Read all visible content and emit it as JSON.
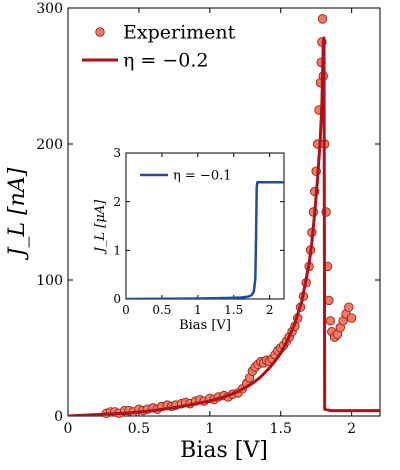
{
  "chart_data": [
    {
      "type": "scatter",
      "title": "",
      "xlabel": "Bias [V]",
      "ylabel": "J_L [nA]",
      "xlim": [
        0,
        2.2
      ],
      "ylim": [
        0,
        300
      ],
      "x_ticks": [
        "0",
        "0.5",
        "1",
        "1.5",
        "2"
      ],
      "y_ticks": [
        "0",
        "100",
        "200",
        "300"
      ],
      "x_tick_values": [
        0,
        0.5,
        1,
        1.5,
        2
      ],
      "y_tick_values": [
        0,
        100,
        200,
        300
      ],
      "grid": false,
      "legend_position": "top-left",
      "series": [
        {
          "name": "Experiment",
          "kind": "markers",
          "color": "#f07a63",
          "edge_color": "#8b1a12",
          "x": [
            0.27,
            0.3,
            0.33,
            0.36,
            0.4,
            0.43,
            0.46,
            0.5,
            0.53,
            0.56,
            0.6,
            0.63,
            0.66,
            0.7,
            0.73,
            0.76,
            0.8,
            0.83,
            0.86,
            0.9,
            0.93,
            0.96,
            1.0,
            1.03,
            1.06,
            1.1,
            1.13,
            1.16,
            1.2,
            1.23,
            1.26,
            1.28,
            1.3,
            1.32,
            1.34,
            1.36,
            1.38,
            1.4,
            1.42,
            1.44,
            1.46,
            1.48,
            1.5,
            1.52,
            1.54,
            1.56,
            1.58,
            1.6,
            1.62,
            1.64,
            1.66,
            1.68,
            1.7,
            1.71,
            1.72,
            1.73,
            1.74,
            1.75,
            1.76,
            1.77,
            1.78,
            1.785,
            1.79,
            1.795,
            1.8,
            1.81,
            1.82,
            1.83,
            1.84,
            1.85,
            1.86,
            1.88,
            1.9,
            1.92,
            1.94,
            1.96,
            1.98,
            2.0
          ],
          "y": [
            2,
            3,
            3,
            2,
            4,
            4,
            3,
            5,
            4,
            5,
            6,
            5,
            7,
            8,
            7,
            8,
            9,
            10,
            9,
            11,
            12,
            11,
            13,
            12,
            14,
            15,
            14,
            16,
            17,
            20,
            24,
            28,
            33,
            36,
            38,
            40,
            39,
            41,
            40,
            42,
            45,
            48,
            50,
            52,
            55,
            58,
            62,
            66,
            72,
            80,
            88,
            98,
            110,
            122,
            135,
            150,
            165,
            180,
            200,
            225,
            245,
            260,
            275,
            292,
            250,
            200,
            150,
            110,
            85,
            70,
            62,
            58,
            60,
            65,
            70,
            75,
            80,
            72
          ]
        },
        {
          "name": "η = −0.2",
          "kind": "line",
          "color": "#b0101a",
          "x": [
            0,
            0.2,
            0.4,
            0.6,
            0.8,
            1.0,
            1.1,
            1.2,
            1.3,
            1.35,
            1.4,
            1.45,
            1.5,
            1.55,
            1.6,
            1.65,
            1.7,
            1.72,
            1.74,
            1.76,
            1.78,
            1.79,
            1.8,
            1.805,
            1.81,
            1.85,
            1.9,
            2.0,
            2.1,
            2.2
          ],
          "y": [
            0,
            1,
            2,
            4,
            7,
            11,
            14,
            18,
            24,
            28,
            33,
            39,
            46,
            56,
            68,
            85,
            112,
            128,
            150,
            175,
            205,
            230,
            275,
            278,
            5,
            4,
            4,
            4,
            4,
            4
          ]
        }
      ]
    },
    {
      "type": "line",
      "title": "",
      "xlabel": "Bias [V]",
      "ylabel": "J_L [μA]",
      "xlim": [
        0,
        2.2
      ],
      "ylim": [
        0,
        3
      ],
      "x_ticks": [
        "0",
        "0.5",
        "1",
        "1.5",
        "2"
      ],
      "y_ticks": [
        "0",
        "1",
        "2",
        "3"
      ],
      "x_tick_values": [
        0,
        0.5,
        1,
        1.5,
        2
      ],
      "y_tick_values": [
        0,
        1,
        2,
        3
      ],
      "grid": false,
      "legend_position": "top-left",
      "series": [
        {
          "name": "η = −0.1",
          "kind": "line",
          "color": "#1f4e9c",
          "x": [
            0,
            0.5,
            1.0,
            1.4,
            1.6,
            1.7,
            1.75,
            1.78,
            1.8,
            1.81,
            1.82,
            1.83,
            1.9,
            2.0,
            2.2
          ],
          "y": [
            0,
            0.005,
            0.01,
            0.02,
            0.03,
            0.05,
            0.08,
            0.15,
            0.4,
            1.2,
            2.3,
            2.4,
            2.4,
            2.4,
            2.4
          ]
        }
      ]
    }
  ]
}
